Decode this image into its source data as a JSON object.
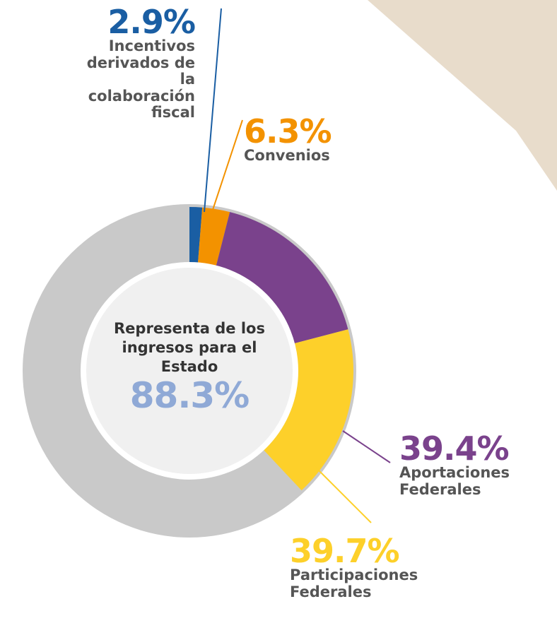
{
  "chart_data": {
    "type": "donut",
    "categories": [
      "Incentivos derivados de la colaboración fiscal",
      "Convenios",
      "Aportaciones Federales",
      "Participaciones Federales"
    ],
    "values": [
      2.9,
      6.3,
      39.4,
      39.7
    ],
    "value_labels": [
      "2.9%",
      "6.3%",
      "39.4%",
      "39.7%"
    ],
    "colors": [
      "#1a5ea3",
      "#f39200",
      "#7a428c",
      "#fdd02a"
    ],
    "center_text": "Representa de los ingresos para el Estado",
    "center_value": "88.3%"
  }
}
